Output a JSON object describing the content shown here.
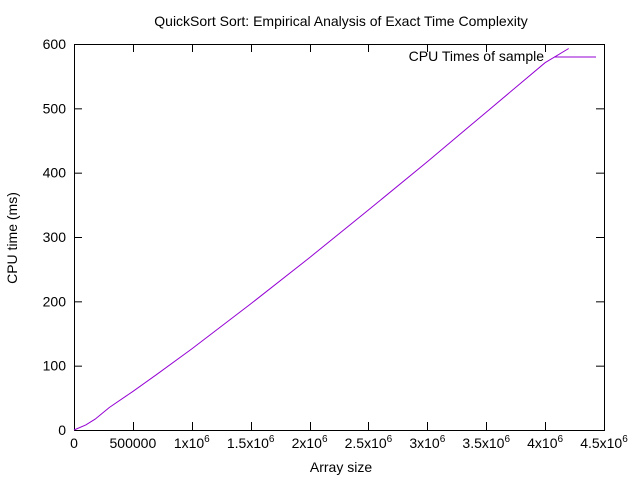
{
  "chart_data": {
    "type": "line",
    "title": "QuickSort Sort: Empirical Analysis of Exact Time Complexity",
    "xlabel": "Array size",
    "ylabel": "CPU time (ms)",
    "xlim": [
      0,
      4500000
    ],
    "ylim": [
      0,
      600
    ],
    "grid": false,
    "legend_position": "top-right",
    "x_ticks": [
      {
        "value": 0,
        "base": "0",
        "sup": ""
      },
      {
        "value": 500000,
        "base": "500000",
        "sup": ""
      },
      {
        "value": 1000000,
        "base": "1x10",
        "sup": "6"
      },
      {
        "value": 1500000,
        "base": "1.5x10",
        "sup": "6"
      },
      {
        "value": 2000000,
        "base": "2x10",
        "sup": "6"
      },
      {
        "value": 2500000,
        "base": "2.5x10",
        "sup": "6"
      },
      {
        "value": 3000000,
        "base": "3x10",
        "sup": "6"
      },
      {
        "value": 3500000,
        "base": "3.5x10",
        "sup": "6"
      },
      {
        "value": 4000000,
        "base": "4x10",
        "sup": "6"
      },
      {
        "value": 4500000,
        "base": "4.5x10",
        "sup": "6"
      }
    ],
    "y_ticks": [
      0,
      100,
      200,
      300,
      400,
      500,
      600
    ],
    "series": [
      {
        "name": "CPU Times of sample",
        "color": "#9400d3",
        "x": [
          0,
          100000,
          180000,
          300000,
          500000,
          700000,
          1000000,
          1500000,
          2000000,
          2500000,
          3000000,
          3500000,
          4000000,
          4200000
        ],
        "y": [
          0,
          8,
          17,
          35,
          60,
          86,
          126,
          196,
          268,
          342,
          417,
          494,
          571,
          593
        ]
      }
    ]
  }
}
